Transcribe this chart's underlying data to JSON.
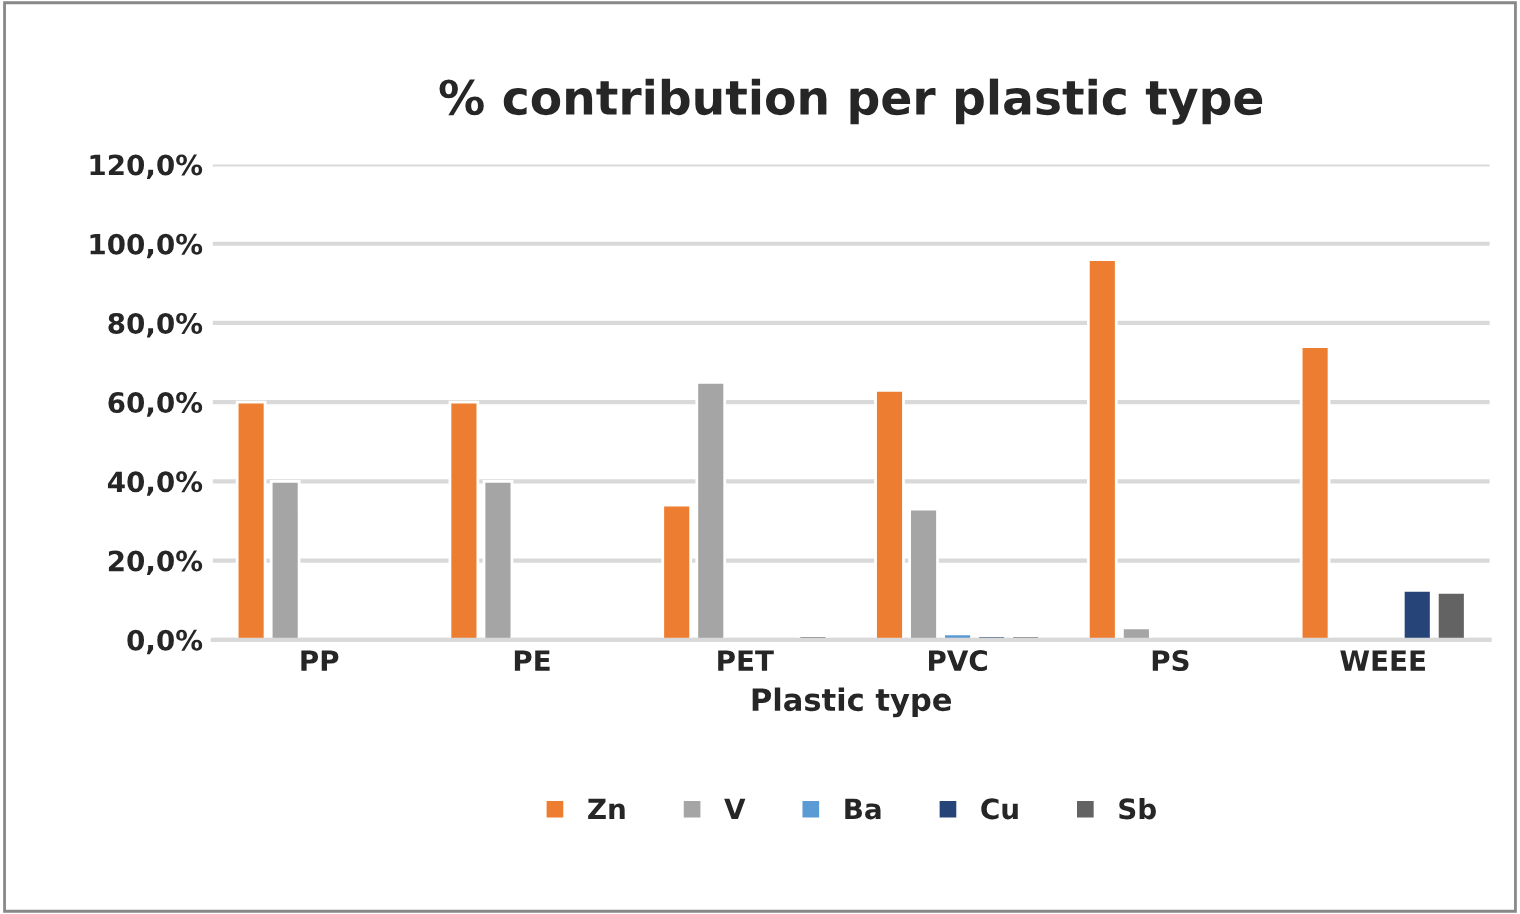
{
  "chart_data": {
    "type": "bar",
    "title": "% contribution per plastic type",
    "xlabel": "Plastic type",
    "categories": [
      "PP",
      "PE",
      "PET",
      "PVC",
      "PS",
      "WEEE"
    ],
    "series": [
      {
        "name": "Zn",
        "color": "#ed7d31",
        "values": [
          60,
          60,
          34,
          63,
          96,
          74
        ]
      },
      {
        "name": "V",
        "color": "#a5a5a5",
        "values": [
          40,
          40,
          65,
          33,
          3,
          null
        ]
      },
      {
        "name": "Ba",
        "color": "#5b9bd5",
        "values": [
          null,
          null,
          null,
          1.5,
          null,
          null
        ]
      },
      {
        "name": "Cu",
        "color": "#264478",
        "values": [
          null,
          null,
          null,
          1,
          null,
          12.5
        ]
      },
      {
        "name": "Sb",
        "color": "#636363",
        "values": [
          null,
          null,
          1,
          1,
          null,
          12
        ]
      }
    ],
    "ylim": [
      0,
      120
    ],
    "yticks": [
      {
        "value": 0,
        "label": "0,0%"
      },
      {
        "value": 20,
        "label": "20,0%"
      },
      {
        "value": 40,
        "label": "40,0%"
      },
      {
        "value": 60,
        "label": "60,0%"
      },
      {
        "value": 80,
        "label": "80,0%"
      },
      {
        "value": 100,
        "label": "100,0%"
      },
      {
        "value": 120,
        "label": "120,0%"
      }
    ],
    "grid": "y",
    "legend": "bottom"
  }
}
